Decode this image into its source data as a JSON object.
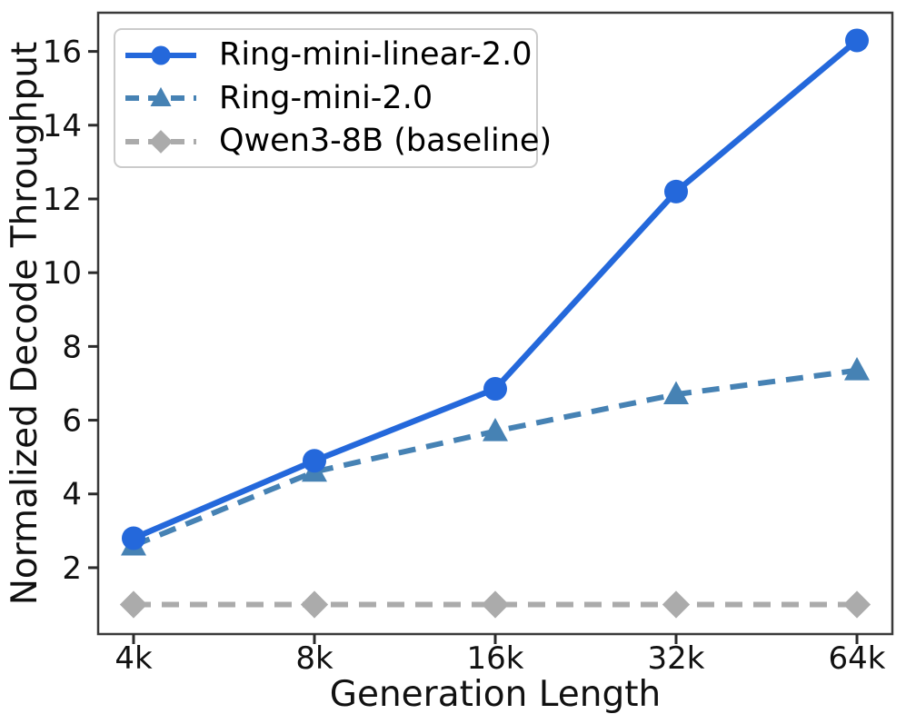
{
  "chart_data": {
    "type": "line",
    "title": "",
    "xlabel": "Generation Length",
    "ylabel": "Normalized Decode Throughput",
    "categories": [
      "4k",
      "8k",
      "16k",
      "32k",
      "64k"
    ],
    "x_scale": "categorical (log2-spaced generation lengths)",
    "yticks": [
      2,
      4,
      6,
      8,
      10,
      12,
      14,
      16
    ],
    "ylim": [
      0.2,
      17.05
    ],
    "grid": false,
    "legend_position": "upper left",
    "series": [
      {
        "name": "Ring-mini-linear-2.0",
        "color": "#2468DB",
        "line_style": "solid",
        "marker": "circle",
        "values": [
          2.8,
          4.9,
          6.85,
          12.2,
          16.3
        ]
      },
      {
        "name": "Ring-mini-2.0",
        "color": "#4682B4",
        "line_style": "dashed",
        "marker": "triangle",
        "values": [
          2.6,
          4.6,
          5.7,
          6.7,
          7.35
        ]
      },
      {
        "name": "Qwen3-8B (baseline)",
        "color": "#ABABAB",
        "line_style": "dashed",
        "marker": "diamond",
        "values": [
          1.0,
          1.0,
          1.0,
          1.0,
          1.0
        ]
      }
    ]
  },
  "axes_style": {
    "spine_color": "#3a3a3a",
    "tick_color": "#2b2b2b",
    "text_color": "#111111"
  }
}
